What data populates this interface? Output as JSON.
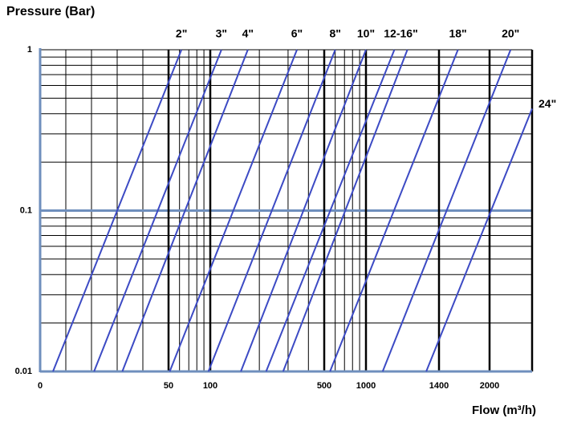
{
  "chart_data": {
    "type": "line",
    "title": "Pressure (Bar)",
    "x_label": "Flow (m³/h)",
    "xscale": "piecewise-log",
    "yscale": "log",
    "xlim": [
      0,
      2700
    ],
    "xticks": [
      0,
      50,
      100,
      500,
      1000,
      1400,
      2000
    ],
    "ylim": [
      0.01,
      1
    ],
    "yticks": [
      0.01,
      0.1,
      1
    ],
    "grid": true,
    "minor_grid": true,
    "line_color": "#3c4ac4",
    "axis_color": "#6f8fbd",
    "series": [
      {
        "name": "2\"",
        "lines": [
          {
            "x": [
              5,
              62
            ],
            "values": [
              0.01,
              1
            ]
          }
        ]
      },
      {
        "name": "3\"",
        "lines": [
          {
            "x": [
              21,
              117
            ],
            "values": [
              0.01,
              1
            ]
          }
        ]
      },
      {
        "name": "4\"",
        "lines": [
          {
            "x": [
              32,
              170
            ],
            "values": [
              0.01,
              1
            ]
          }
        ]
      },
      {
        "name": "6\"",
        "lines": [
          {
            "x": [
              51,
              340
            ],
            "values": [
              0.01,
              1
            ]
          }
        ]
      },
      {
        "name": "8\"",
        "lines": [
          {
            "x": [
              97,
              600
            ],
            "values": [
              0.01,
              1
            ]
          }
        ]
      },
      {
        "name": "10\"",
        "lines": [
          {
            "x": [
              154,
              1000
            ],
            "values": [
              0.01,
              1
            ]
          }
        ]
      },
      {
        "name": "12-16\"",
        "lines": [
          {
            "x": [
              220,
              1140
            ],
            "values": [
              0.01,
              1
            ]
          },
          {
            "x": [
              280,
              1210
            ],
            "values": [
              0.01,
              1
            ]
          }
        ]
      },
      {
        "name": "18\"",
        "lines": [
          {
            "x": [
              550,
              1600
            ],
            "values": [
              0.01,
              1
            ]
          }
        ]
      },
      {
        "name": "20\"",
        "lines": [
          {
            "x": [
              1080,
              2320
            ],
            "values": [
              0.01,
              1
            ]
          }
        ]
      },
      {
        "name": "24\"",
        "lines": [
          {
            "x": [
              1320,
              2700
            ],
            "values": [
              0.01,
              0.43
            ]
          }
        ]
      }
    ]
  }
}
